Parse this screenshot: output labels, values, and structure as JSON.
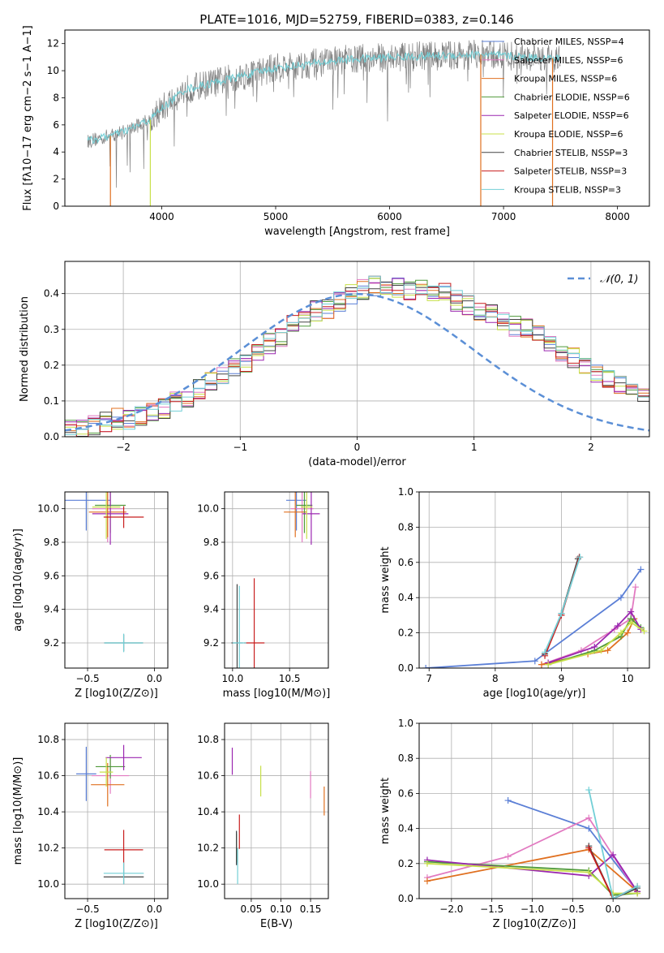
{
  "figure": {
    "title": "PLATE=1016, MJD=52759, FIBERID=0383, z=0.146"
  },
  "series_colors": {
    "Chabrier MILES": "#5b7fd6",
    "Salpeter MILES": "#e27ac1",
    "Kroupa MILES": "#e07020",
    "Chabrier ELODIE": "#4f9a3a",
    "Salpeter ELODIE": "#9b27b0",
    "Kroupa ELODIE": "#c8e04a",
    "Chabrier STELIB": "#444444",
    "Salpeter STELIB": "#c81e1e",
    "Kroupa STELIB": "#72cfd6"
  },
  "chart_data": [
    {
      "id": "spectrum",
      "type": "line",
      "xlabel": "wavelength [Angstrom, rest frame]",
      "ylabel": "Flux [fλ10−17 erg cm−2 s−1 A−1]",
      "xlim": [
        3150,
        8280
      ],
      "ylim": [
        0,
        13
      ],
      "xticks": [
        4000,
        5000,
        6000,
        7000,
        8000
      ],
      "yticks": [
        0,
        2,
        4,
        6,
        8,
        10,
        12
      ],
      "grid": false,
      "legend": "top-right",
      "data_color": "#808080",
      "model_color": "#72cfd6",
      "data_trend": {
        "x": [
          3350,
          3550,
          3700,
          3900,
          4000,
          4200,
          4500,
          4800,
          5000,
          5300,
          5600,
          6000,
          6400,
          6800,
          7200,
          7500
        ],
        "y": [
          4.8,
          5.2,
          5.6,
          6.4,
          7.2,
          8.6,
          9.2,
          9.8,
          10.2,
          10.5,
          10.8,
          11.0,
          11.1,
          11.2,
          11.0,
          10.9
        ]
      },
      "legend_entries": [
        "Chabrier MILES, NSSP=4",
        "Salpeter MILES, NSSP=6",
        "Kroupa MILES, NSSP=6",
        "Chabrier ELODIE, NSSP=6",
        "Salpeter ELODIE, NSSP=6",
        "Kroupa ELODIE, NSSP=6",
        "Chabrier STELIB, NSSP=3",
        "Salpeter STELIB, NSSP=3",
        "Kroupa STELIB, NSSP=3"
      ]
    },
    {
      "id": "residuals",
      "type": "bar",
      "xlabel": "(data-model)/error",
      "ylabel": "Normed distribution",
      "xlim": [
        -2.5,
        2.5
      ],
      "ylim": [
        0,
        0.49
      ],
      "xticks": [
        -2,
        -1,
        0,
        1,
        2
      ],
      "yticks": [
        0.0,
        0.1,
        0.2,
        0.3,
        0.4
      ],
      "grid": true,
      "legend": "top-right",
      "legend_label": "𝒩(0, 1)",
      "bin_width": 0.1,
      "bin_start": -2.5,
      "histogram": [
        0.02,
        0.02,
        0.03,
        0.04,
        0.05,
        0.05,
        0.06,
        0.07,
        0.08,
        0.1,
        0.11,
        0.13,
        0.15,
        0.17,
        0.19,
        0.21,
        0.23,
        0.26,
        0.28,
        0.31,
        0.33,
        0.35,
        0.36,
        0.38,
        0.4,
        0.41,
        0.42,
        0.42,
        0.42,
        0.41,
        0.41,
        0.4,
        0.4,
        0.38,
        0.37,
        0.35,
        0.34,
        0.32,
        0.31,
        0.3,
        0.28,
        0.26,
        0.24,
        0.22,
        0.2,
        0.18,
        0.16,
        0.14,
        0.12,
        0.11
      ]
    },
    {
      "id": "age-vs-Z",
      "type": "scatter",
      "xlabel": "Z [log10(Z/Z⊙)]",
      "ylabel": "age  [log10(age/yr)]",
      "xlim": [
        -0.67,
        0.1
      ],
      "ylim": [
        9.05,
        10.1
      ],
      "xticks": [
        -0.5,
        0.0
      ],
      "yticks": [
        9.2,
        9.4,
        9.6,
        9.8,
        10.0
      ],
      "grid": true,
      "errorbars": [
        {
          "s": "Chabrier MILES",
          "x": -0.51,
          "y": 10.05,
          "xe": 0.36,
          "ye": 0.36
        },
        {
          "s": "Salpeter MILES",
          "x": -0.35,
          "y": 10.0,
          "xe": 0.23,
          "ye": 0.4
        },
        {
          "s": "Kroupa MILES",
          "x": -0.35,
          "y": 9.98,
          "xe": 0.28,
          "ye": 0.3
        },
        {
          "s": "Chabrier ELODIE",
          "x": -0.33,
          "y": 10.02,
          "xe": 0.23,
          "ye": 0.33
        },
        {
          "s": "Salpeter ELODIE",
          "x": -0.33,
          "y": 9.97,
          "xe": 0.27,
          "ye": 0.37
        },
        {
          "s": "Kroupa ELODIE",
          "x": -0.36,
          "y": 10.01,
          "xe": 0.21,
          "ye": 0.38
        },
        {
          "s": "Chabrier STELIB",
          "x": -0.23,
          "y": 9.2,
          "xe": 0.29,
          "ye": 0.1
        },
        {
          "s": "Salpeter STELIB",
          "x": -0.23,
          "y": 9.95,
          "xe": 0.3,
          "ye": 0.13
        },
        {
          "s": "Kroupa STELIB",
          "x": -0.23,
          "y": 9.2,
          "xe": 0.29,
          "ye": 0.11
        }
      ]
    },
    {
      "id": "age-vs-mass",
      "type": "scatter",
      "xlabel": "mass [log10(M/M⊙)]",
      "ylabel": "",
      "xlim": [
        9.93,
        10.84
      ],
      "ylim": [
        9.05,
        10.1
      ],
      "xticks": [
        10.0,
        10.5
      ],
      "yticks": [
        9.2,
        9.4,
        9.6,
        9.8,
        10.0
      ],
      "grid": true,
      "errorbars": [
        {
          "s": "Chabrier MILES",
          "x": 10.56,
          "y": 10.05,
          "xe": 0.18,
          "ye": 0.36
        },
        {
          "s": "Salpeter MILES",
          "x": 10.61,
          "y": 10.0,
          "xe": 0.2,
          "ye": 0.4
        },
        {
          "s": "Kroupa MILES",
          "x": 10.55,
          "y": 9.98,
          "xe": 0.2,
          "ye": 0.3
        },
        {
          "s": "Chabrier ELODIE",
          "x": 10.63,
          "y": 10.02,
          "xe": 0.14,
          "ye": 0.33
        },
        {
          "s": "Salpeter ELODIE",
          "x": 10.69,
          "y": 9.97,
          "xe": 0.15,
          "ye": 0.37
        },
        {
          "s": "Kroupa ELODIE",
          "x": 10.65,
          "y": 10.01,
          "xe": 0.1,
          "ye": 0.38
        },
        {
          "s": "Chabrier STELIB",
          "x": 10.04,
          "y": 9.2,
          "xe": 0.1,
          "ye": 0.7
        },
        {
          "s": "Salpeter STELIB",
          "x": 10.19,
          "y": 9.2,
          "xe": 0.18,
          "ye": 0.77
        },
        {
          "s": "Kroupa STELIB",
          "x": 10.06,
          "y": 9.2,
          "xe": 0.12,
          "ye": 0.68
        }
      ]
    },
    {
      "id": "weights-vs-age",
      "type": "line",
      "xlabel": "age  [log10(age/yr)]",
      "ylabel": "mass weight",
      "xlim": [
        6.85,
        10.33
      ],
      "ylim": [
        0,
        1
      ],
      "xticks": [
        7,
        8,
        9,
        10
      ],
      "yticks": [
        0.0,
        0.2,
        0.4,
        0.6,
        0.8,
        1.0
      ],
      "grid": true,
      "series": [
        {
          "s": "Chabrier MILES",
          "x": [
            6.95,
            8.6,
            9.9,
            10.2
          ],
          "y": [
            0.0,
            0.04,
            0.4,
            0.56
          ]
        },
        {
          "s": "Salpeter MILES",
          "x": [
            8.7,
            9.3,
            9.8,
            10.05,
            10.12
          ],
          "y": [
            0.02,
            0.1,
            0.22,
            0.28,
            0.46
          ]
        },
        {
          "s": "Kroupa MILES",
          "x": [
            8.7,
            9.4,
            9.7,
            10.0,
            10.1
          ],
          "y": [
            0.02,
            0.08,
            0.1,
            0.2,
            0.28
          ]
        },
        {
          "s": "Chabrier ELODIE",
          "x": [
            8.8,
            9.5,
            9.9,
            10.05,
            10.2
          ],
          "y": [
            0.02,
            0.1,
            0.18,
            0.28,
            0.23
          ]
        },
        {
          "s": "Salpeter ELODIE",
          "x": [
            8.8,
            9.5,
            9.85,
            10.05,
            10.2
          ],
          "y": [
            0.03,
            0.12,
            0.24,
            0.32,
            0.22
          ]
        },
        {
          "s": "Kroupa ELODIE",
          "x": [
            8.8,
            9.6,
            9.9,
            10.05,
            10.25
          ],
          "y": [
            0.02,
            0.1,
            0.2,
            0.26,
            0.21
          ]
        },
        {
          "s": "Chabrier STELIB",
          "x": [
            8.75,
            9.0,
            9.25
          ],
          "y": [
            0.08,
            0.31,
            0.62
          ]
        },
        {
          "s": "Salpeter STELIB",
          "x": [
            8.75,
            9.0,
            9.27
          ],
          "y": [
            0.07,
            0.3,
            0.63
          ]
        },
        {
          "s": "Kroupa STELIB",
          "x": [
            8.75,
            9.0,
            9.28
          ],
          "y": [
            0.09,
            0.31,
            0.63
          ]
        }
      ]
    },
    {
      "id": "mass-vs-Z",
      "type": "scatter",
      "xlabel": "Z [log10(Z/Z⊙)]",
      "ylabel": "mass [log10(M/M⊙)]",
      "xlim": [
        -0.67,
        0.1
      ],
      "ylim": [
        9.92,
        10.89
      ],
      "xticks": [
        -0.5,
        0.0
      ],
      "yticks": [
        10.0,
        10.2,
        10.4,
        10.6,
        10.8
      ],
      "grid": true,
      "errorbars": [
        {
          "s": "Chabrier MILES",
          "x": -0.51,
          "y": 10.61,
          "xe": 0.15,
          "ye": 0.3
        },
        {
          "s": "Salpeter MILES",
          "x": -0.33,
          "y": 10.6,
          "xe": 0.28,
          "ye": 0.2
        },
        {
          "s": "Kroupa MILES",
          "x": -0.35,
          "y": 10.55,
          "xe": 0.25,
          "ye": 0.24
        },
        {
          "s": "Chabrier ELODIE",
          "x": -0.33,
          "y": 10.65,
          "xe": 0.22,
          "ye": 0.13
        },
        {
          "s": "Salpeter ELODIE",
          "x": -0.23,
          "y": 10.7,
          "xe": 0.27,
          "ye": 0.14
        },
        {
          "s": "Kroupa ELODIE",
          "x": -0.36,
          "y": 10.62,
          "xe": 0.1,
          "ye": 0.16
        },
        {
          "s": "Chabrier STELIB",
          "x": -0.23,
          "y": 10.04,
          "xe": 0.3,
          "ye": 0.08
        },
        {
          "s": "Salpeter STELIB",
          "x": -0.23,
          "y": 10.19,
          "xe": 0.29,
          "ye": 0.22
        },
        {
          "s": "Kroupa STELIB",
          "x": -0.23,
          "y": 10.06,
          "xe": 0.3,
          "ye": 0.12
        }
      ]
    },
    {
      "id": "mass-vs-ebv",
      "type": "scatter",
      "xlabel": "E(B-V)",
      "ylabel": "",
      "xlim": [
        0.005,
        0.18
      ],
      "ylim": [
        9.92,
        10.89
      ],
      "xticks": [
        0.05,
        0.1,
        0.15
      ],
      "yticks": [
        10.0,
        10.2,
        10.4,
        10.6,
        10.8
      ],
      "grid": true,
      "errorbars": [
        {
          "s": "Chabrier MILES",
          "x": 0.025,
          "y": 10.2,
          "xe": 0.0,
          "ye": 0.18
        },
        {
          "s": "Salpeter MILES",
          "x": 0.15,
          "y": 10.55,
          "xe": 0.0,
          "ye": 0.15
        },
        {
          "s": "Kroupa MILES",
          "x": 0.173,
          "y": 10.46,
          "xe": 0.0,
          "ye": 0.16
        },
        {
          "s": "Chabrier ELODIE",
          "x": 0.025,
          "y": 10.2,
          "xe": 0.0,
          "ye": 0.16
        },
        {
          "s": "Salpeter ELODIE",
          "x": 0.018,
          "y": 10.68,
          "xe": 0.0,
          "ye": 0.15
        },
        {
          "s": "Kroupa ELODIE",
          "x": 0.066,
          "y": 10.57,
          "xe": 0.0,
          "ye": 0.17
        },
        {
          "s": "Chabrier STELIB",
          "x": 0.025,
          "y": 10.2,
          "xe": 0.0,
          "ye": 0.19
        },
        {
          "s": "Salpeter STELIB",
          "x": 0.03,
          "y": 10.29,
          "xe": 0.0,
          "ye": 0.19
        },
        {
          "s": "Kroupa STELIB",
          "x": 0.027,
          "y": 10.1,
          "xe": 0.0,
          "ye": 0.2
        }
      ]
    },
    {
      "id": "weights-vs-Z",
      "type": "line",
      "xlabel": "Z [log10(Z/Z⊙)]",
      "ylabel": "mass weight",
      "xlim": [
        -2.4,
        0.45
      ],
      "ylim": [
        0,
        1
      ],
      "xticks": [
        -2.0,
        -1.5,
        -1.0,
        -0.5,
        0.0
      ],
      "yticks": [
        0.0,
        0.2,
        0.4,
        0.6,
        0.8,
        1.0
      ],
      "grid": true,
      "series": [
        {
          "s": "Chabrier MILES",
          "x": [
            -1.3,
            -0.3,
            0.3
          ],
          "y": [
            0.56,
            0.4,
            0.04
          ]
        },
        {
          "s": "Salpeter MILES",
          "x": [
            -2.3,
            -1.3,
            -0.3,
            0.3
          ],
          "y": [
            0.12,
            0.24,
            0.46,
            0.03
          ]
        },
        {
          "s": "Kroupa MILES",
          "x": [
            -2.3,
            -0.3,
            0.3
          ],
          "y": [
            0.1,
            0.28,
            0.04
          ]
        },
        {
          "s": "Chabrier ELODIE",
          "x": [
            -2.3,
            -0.3,
            0.0,
            0.3
          ],
          "y": [
            0.21,
            0.16,
            0.02,
            0.03
          ]
        },
        {
          "s": "Salpeter ELODIE",
          "x": [
            -2.3,
            -0.3,
            0.0,
            0.3
          ],
          "y": [
            0.22,
            0.13,
            0.25,
            0.04
          ]
        },
        {
          "s": "Kroupa ELODIE",
          "x": [
            -2.3,
            -0.3,
            0.0,
            0.3
          ],
          "y": [
            0.2,
            0.15,
            0.03,
            0.03
          ]
        },
        {
          "s": "Chabrier STELIB",
          "x": [
            -0.3,
            0.0,
            0.3
          ],
          "y": [
            0.3,
            0.0,
            0.06
          ]
        },
        {
          "s": "Salpeter STELIB",
          "x": [
            -0.3,
            0.0,
            0.3
          ],
          "y": [
            0.29,
            0.0,
            0.07
          ]
        },
        {
          "s": "Kroupa STELIB",
          "x": [
            -0.3,
            0.0,
            0.3
          ],
          "y": [
            0.62,
            0.0,
            0.07
          ]
        }
      ]
    }
  ]
}
